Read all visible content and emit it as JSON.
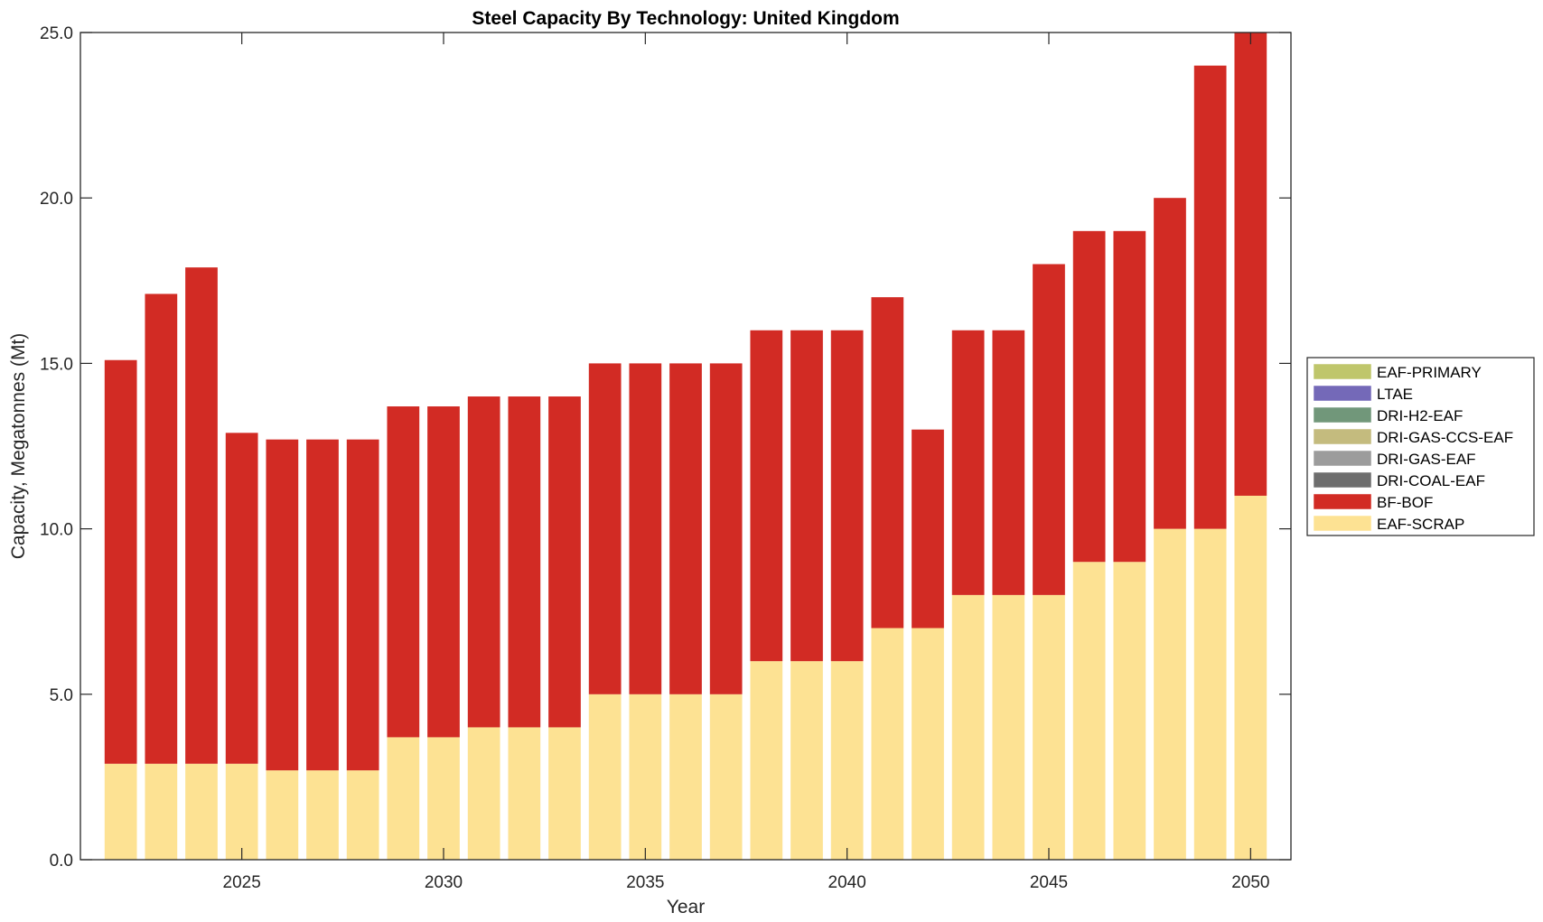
{
  "chart_data": {
    "type": "bar",
    "stacked": true,
    "title": "Steel Capacity By Technology: United Kingdom",
    "xlabel": "Year",
    "ylabel": "Capacity, Megatonnes (Mt)",
    "xlim": [
      2021,
      2051
    ],
    "ylim": [
      0,
      25
    ],
    "grid": false,
    "legend_position": "right",
    "x_ticks": [
      2025,
      2030,
      2035,
      2040,
      2045,
      2050
    ],
    "x_tick_labels": [
      "2025",
      "2030",
      "2035",
      "2040",
      "2045",
      "2050"
    ],
    "y_ticks": [
      0,
      5,
      10,
      15,
      20,
      25
    ],
    "y_tick_labels": [
      "0.0",
      "5.0",
      "10.0",
      "15.0",
      "20.0",
      "25.0"
    ],
    "categories": [
      2022,
      2023,
      2024,
      2025,
      2026,
      2027,
      2028,
      2029,
      2030,
      2031,
      2032,
      2033,
      2034,
      2035,
      2036,
      2037,
      2038,
      2039,
      2040,
      2041,
      2042,
      2043,
      2044,
      2045,
      2046,
      2047,
      2048,
      2049,
      2050
    ],
    "series": [
      {
        "name": "EAF-SCRAP",
        "color": "#FDE293",
        "values": [
          2.9,
          2.9,
          2.9,
          2.9,
          2.7,
          2.7,
          2.7,
          3.7,
          3.7,
          4.0,
          4.0,
          4.0,
          5.0,
          5.0,
          5.0,
          5.0,
          6.0,
          6.0,
          6.0,
          7.0,
          7.0,
          8.0,
          8.0,
          8.0,
          9.0,
          9.0,
          10.0,
          10.0,
          11.0
        ]
      },
      {
        "name": "BF-BOF",
        "color": "#D22B24",
        "values": [
          12.2,
          14.2,
          15.0,
          10.0,
          10.0,
          10.0,
          10.0,
          10.0,
          10.0,
          10.0,
          10.0,
          10.0,
          10.0,
          10.0,
          10.0,
          10.0,
          10.0,
          10.0,
          10.0,
          10.0,
          6.0,
          8.0,
          8.0,
          10.0,
          10.0,
          10.0,
          10.0,
          14.0,
          14.0
        ]
      },
      {
        "name": "DRI-COAL-EAF",
        "color": "#6E6E6E",
        "values": [
          0,
          0,
          0,
          0,
          0,
          0,
          0,
          0,
          0,
          0,
          0,
          0,
          0,
          0,
          0,
          0,
          0,
          0,
          0,
          0,
          0,
          0,
          0,
          0,
          0,
          0,
          0,
          0,
          0
        ]
      },
      {
        "name": "DRI-GAS-EAF",
        "color": "#9C9C9C",
        "values": [
          0,
          0,
          0,
          0,
          0,
          0,
          0,
          0,
          0,
          0,
          0,
          0,
          0,
          0,
          0,
          0,
          0,
          0,
          0,
          0,
          0,
          0,
          0,
          0,
          0,
          0,
          0,
          0,
          0
        ]
      },
      {
        "name": "DRI-GAS-CCS-EAF",
        "color": "#C4BB7E",
        "values": [
          0,
          0,
          0,
          0,
          0,
          0,
          0,
          0,
          0,
          0,
          0,
          0,
          0,
          0,
          0,
          0,
          0,
          0,
          0,
          0,
          0,
          0,
          0,
          0,
          0,
          0,
          0,
          0,
          0
        ]
      },
      {
        "name": "DRI-H2-EAF",
        "color": "#71977A",
        "values": [
          0,
          0,
          0,
          0,
          0,
          0,
          0,
          0,
          0,
          0,
          0,
          0,
          0,
          0,
          0,
          0,
          0,
          0,
          0,
          0,
          0,
          0,
          0,
          0,
          0,
          0,
          0,
          0,
          0
        ]
      },
      {
        "name": "LTAE",
        "color": "#7469B8",
        "values": [
          0,
          0,
          0,
          0,
          0,
          0,
          0,
          0,
          0,
          0,
          0,
          0,
          0,
          0,
          0,
          0,
          0,
          0,
          0,
          0,
          0,
          0,
          0,
          0,
          0,
          0,
          0,
          0,
          0
        ]
      },
      {
        "name": "EAF-PRIMARY",
        "color": "#BFC66B",
        "values": [
          0,
          0,
          0,
          0,
          0,
          0,
          0,
          0,
          0,
          0,
          0,
          0,
          0,
          0,
          0,
          0,
          0,
          0,
          0,
          0,
          0,
          0,
          0,
          0,
          0,
          0,
          0,
          0,
          0
        ]
      }
    ],
    "legend_order": [
      "EAF-PRIMARY",
      "LTAE",
      "DRI-H2-EAF",
      "DRI-GAS-CCS-EAF",
      "DRI-GAS-EAF",
      "DRI-COAL-EAF",
      "BF-BOF",
      "EAF-SCRAP"
    ]
  }
}
